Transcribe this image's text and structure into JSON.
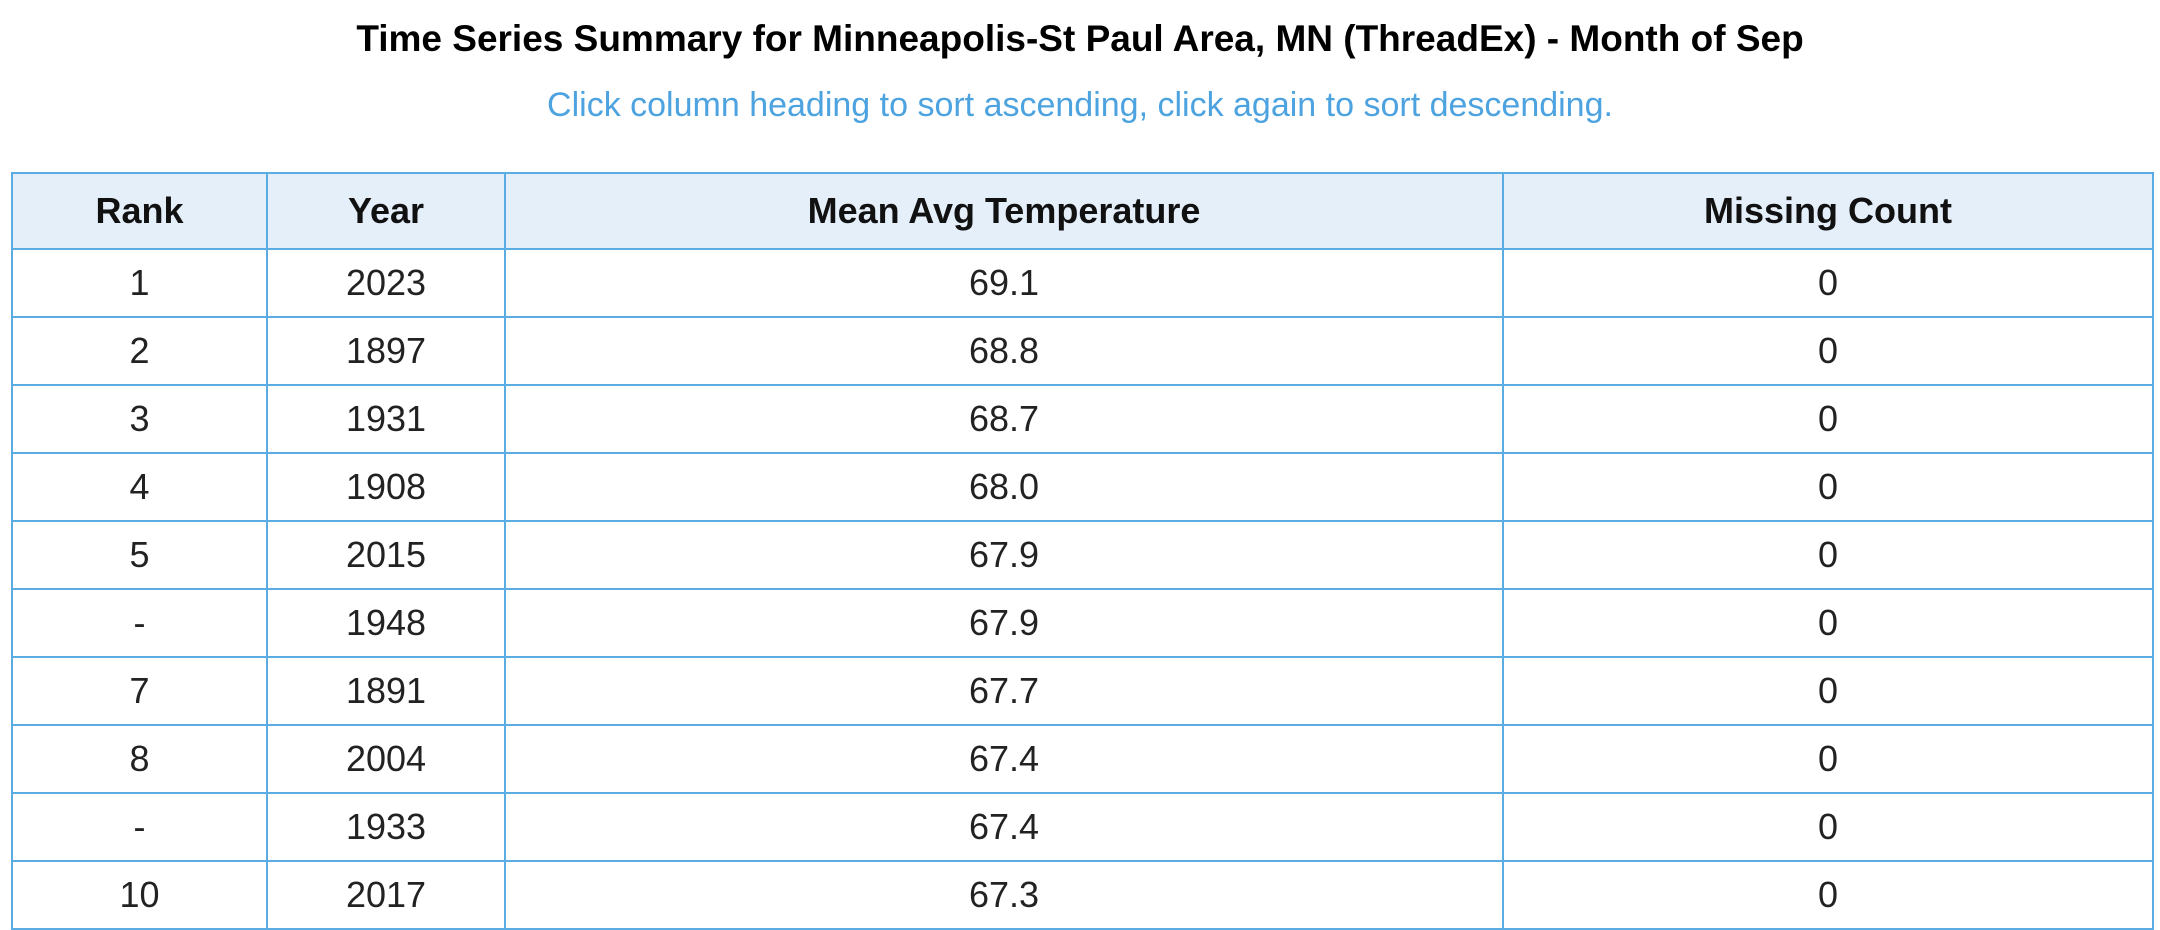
{
  "header": {
    "title": "Time Series Summary for Minneapolis-St Paul Area, MN (ThreadEx) - Month of Sep",
    "subtitle": "Click column heading to sort ascending, click again to sort descending."
  },
  "table": {
    "columns": [
      "Rank",
      "Year",
      "Mean Avg Temperature",
      "Missing Count"
    ],
    "rows": [
      [
        "1",
        "2023",
        "69.1",
        "0"
      ],
      [
        "2",
        "1897",
        "68.8",
        "0"
      ],
      [
        "3",
        "1931",
        "68.7",
        "0"
      ],
      [
        "4",
        "1908",
        "68.0",
        "0"
      ],
      [
        "5",
        "2015",
        "67.9",
        "0"
      ],
      [
        "-",
        "1948",
        "67.9",
        "0"
      ],
      [
        "7",
        "1891",
        "67.7",
        "0"
      ],
      [
        "8",
        "2004",
        "67.4",
        "0"
      ],
      [
        "-",
        "1933",
        "67.4",
        "0"
      ],
      [
        "10",
        "2017",
        "67.3",
        "0"
      ]
    ]
  }
}
